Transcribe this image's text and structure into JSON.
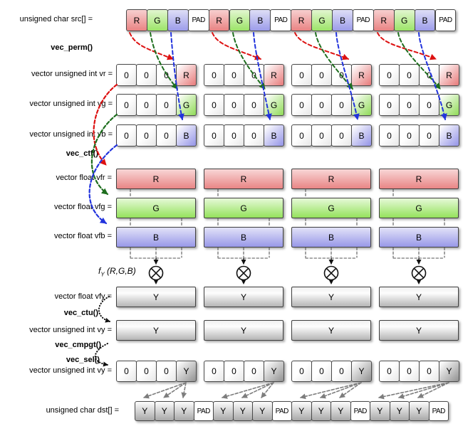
{
  "rows": {
    "src": {
      "label": "unsigned char src[] =",
      "cells": [
        "R",
        "G",
        "B",
        "PAD",
        "R",
        "G",
        "B",
        "PAD",
        "R",
        "G",
        "B",
        "PAD",
        "R",
        "G",
        "B",
        "PAD"
      ]
    },
    "vr": {
      "label": "vector unsigned int vr =",
      "groups": [
        [
          "0",
          "0",
          "0",
          "R"
        ],
        [
          "0",
          "0",
          "0",
          "R"
        ],
        [
          "0",
          "0",
          "0",
          "R"
        ],
        [
          "0",
          "0",
          "0",
          "R"
        ]
      ]
    },
    "vg": {
      "label": "vector unsigned int vg =",
      "groups": [
        [
          "0",
          "0",
          "0",
          "G"
        ],
        [
          "0",
          "0",
          "0",
          "G"
        ],
        [
          "0",
          "0",
          "0",
          "G"
        ],
        [
          "0",
          "0",
          "0",
          "G"
        ]
      ]
    },
    "vb": {
      "label": "vector unsigned int vb =",
      "groups": [
        [
          "0",
          "0",
          "0",
          "B"
        ],
        [
          "0",
          "0",
          "0",
          "B"
        ],
        [
          "0",
          "0",
          "0",
          "B"
        ],
        [
          "0",
          "0",
          "0",
          "B"
        ]
      ]
    },
    "vfr": {
      "label": "vector float vfr =",
      "bars": [
        "R",
        "R",
        "R",
        "R"
      ]
    },
    "vfg": {
      "label": "vector float vfg =",
      "bars": [
        "G",
        "G",
        "G",
        "G"
      ]
    },
    "vfb": {
      "label": "vector float vfb =",
      "bars": [
        "B",
        "B",
        "B",
        "B"
      ]
    },
    "vfy": {
      "label": "vector float vfy =",
      "bars": [
        "Y",
        "Y",
        "Y",
        "Y"
      ]
    },
    "vy": {
      "label": "vector unsigned int vy =",
      "bars": [
        "Y",
        "Y",
        "Y",
        "Y"
      ]
    },
    "vy2": {
      "label": "vector unsigned int vy =",
      "groups": [
        [
          "0",
          "0",
          "0",
          "Y"
        ],
        [
          "0",
          "0",
          "0",
          "Y"
        ],
        [
          "0",
          "0",
          "0",
          "Y"
        ],
        [
          "0",
          "0",
          "0",
          "Y"
        ]
      ]
    },
    "dst": {
      "label": "unsigned char dst[] =",
      "cells": [
        "Y",
        "Y",
        "Y",
        "PAD",
        "Y",
        "Y",
        "Y",
        "PAD",
        "Y",
        "Y",
        "Y",
        "PAD",
        "Y",
        "Y",
        "Y",
        "PAD"
      ]
    }
  },
  "ops": {
    "perm": "vec_perm()",
    "ctf": "vec_ctf()",
    "ctu": "vec_ctu()",
    "cmpgt": "vec_cmpgt()",
    "sel": "vec_sel()"
  },
  "formula": {
    "f": "f",
    "sub": "Y",
    "args": " (R,G,B)",
    "combiner_symbol": "circle-times"
  },
  "colors": {
    "red_arrow": "#dd1111",
    "green_arrow": "#1e6e1e",
    "blue_arrow": "#2233dd",
    "gray_arrow": "#7d7d7d",
    "black_arrow": "#111111",
    "guide_line": "#555555",
    "cell_border": "#4a4a4a",
    "red_fill": "#e98383",
    "green_fill": "#9ce468",
    "blue_fill": "#9c9cea",
    "gray_fill": "#a8a8a8"
  }
}
